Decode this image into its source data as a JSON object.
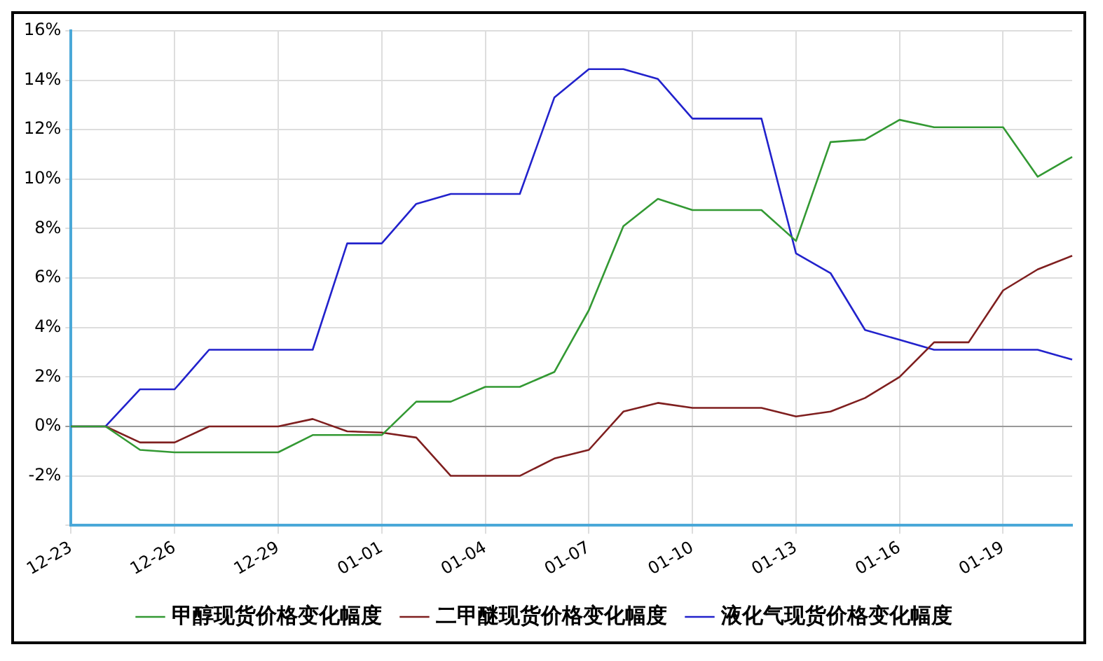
{
  "chart_data": {
    "type": "line",
    "categories": [
      "12-23",
      null,
      null,
      "12-26",
      null,
      null,
      "12-29",
      null,
      null,
      "01-01",
      null,
      null,
      "01-04",
      null,
      null,
      "01-07",
      null,
      null,
      "01-10",
      null,
      null,
      "01-13",
      null,
      null,
      "01-16",
      null,
      null,
      "01-19",
      null,
      null
    ],
    "series": [
      {
        "name": "甲醇现货价格变化幅度",
        "color": "#339933",
        "values": [
          0,
          0,
          -0.95,
          -1.05,
          -1.05,
          -1.05,
          -1.05,
          -0.35,
          -0.35,
          -0.35,
          1.0,
          1.0,
          1.6,
          1.6,
          2.2,
          4.7,
          8.1,
          9.2,
          8.75,
          8.75,
          8.75,
          7.5,
          11.5,
          11.6,
          12.4,
          12.1,
          12.1,
          12.1,
          10.1,
          10.9
        ]
      },
      {
        "name": "二甲醚现货价格变化幅度",
        "color": "#7f1f1f",
        "values": [
          0,
          0,
          -0.65,
          -0.65,
          0,
          0,
          0,
          0.3,
          -0.2,
          -0.25,
          -0.45,
          -2.0,
          -2.0,
          -2.0,
          -1.3,
          -0.95,
          0.6,
          0.95,
          0.75,
          0.75,
          0.75,
          0.4,
          0.6,
          1.15,
          2.0,
          3.4,
          3.4,
          5.5,
          6.35,
          6.9
        ]
      },
      {
        "name": "液化气现货价格变化幅度",
        "color": "#2222cc",
        "values": [
          0,
          0,
          1.5,
          1.5,
          3.1,
          3.1,
          3.1,
          3.1,
          7.4,
          7.4,
          9.0,
          9.4,
          9.4,
          9.4,
          13.3,
          14.45,
          14.45,
          14.05,
          12.45,
          12.45,
          12.45,
          7.0,
          6.2,
          3.9,
          3.5,
          3.1,
          3.1,
          3.1,
          3.1,
          2.7
        ]
      }
    ],
    "ylim": [
      -4,
      16
    ],
    "yticks": [
      {
        "value": -4,
        "label": null
      },
      {
        "value": -2,
        "label": "-2%"
      },
      {
        "value": 0,
        "label": "0%"
      },
      {
        "value": 2,
        "label": "2%"
      },
      {
        "value": 4,
        "label": "4%"
      },
      {
        "value": 6,
        "label": "6%"
      },
      {
        "value": 8,
        "label": "8%"
      },
      {
        "value": 10,
        "label": "10%"
      },
      {
        "value": 12,
        "label": "12%"
      },
      {
        "value": 14,
        "label": "14%"
      },
      {
        "value": 16,
        "label": "16%"
      }
    ],
    "grid": true,
    "legend": "bottom",
    "marker": "none",
    "line_style": "solid"
  }
}
